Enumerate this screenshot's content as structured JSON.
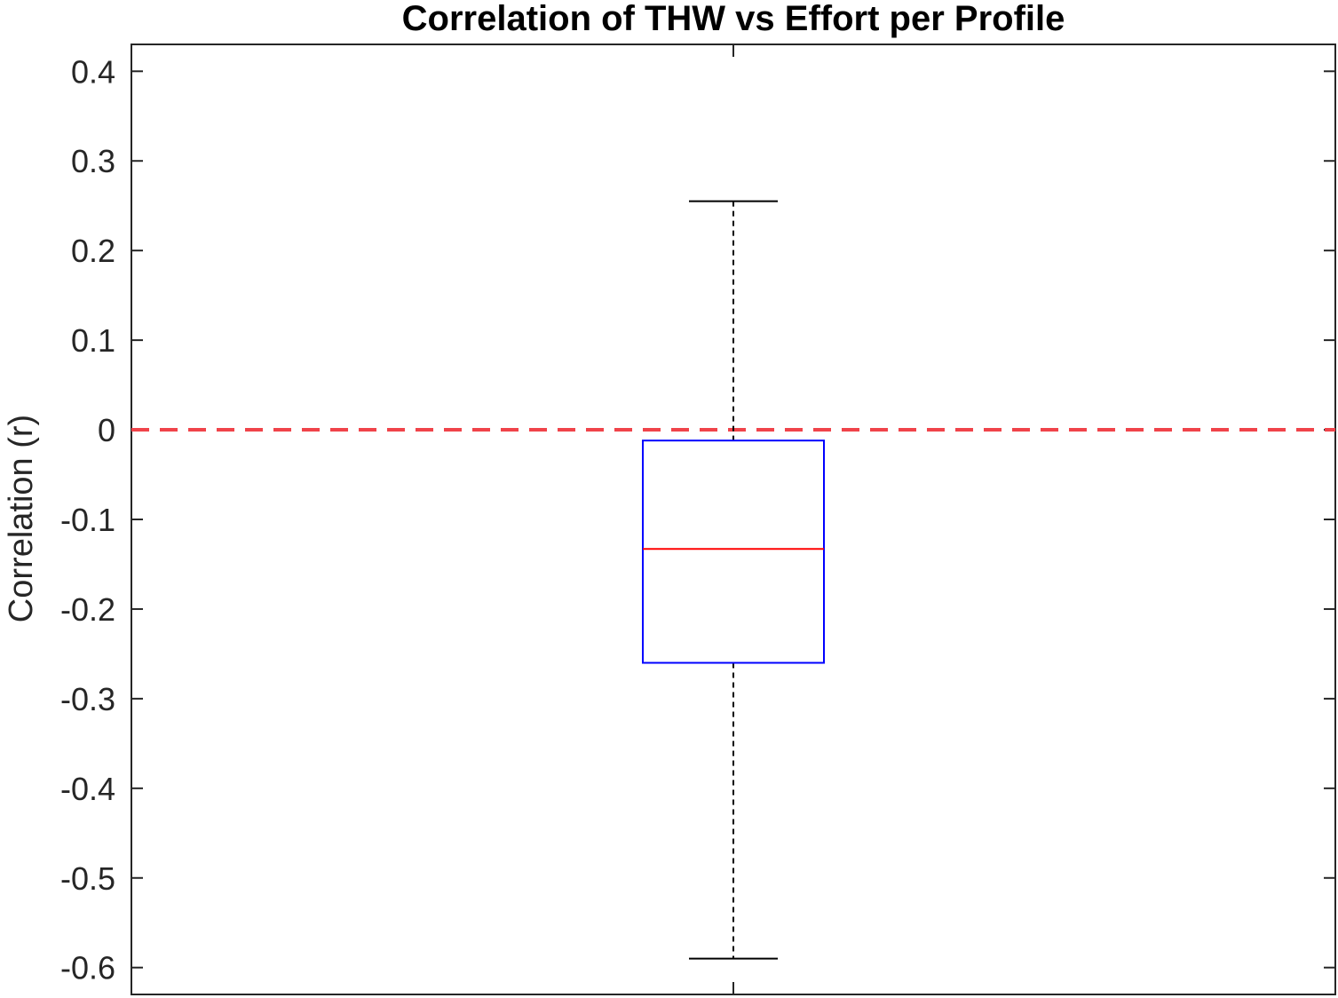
{
  "chart_data": {
    "type": "box",
    "title": "Correlation of THW vs Effort per Profile",
    "xlabel": "",
    "ylabel": "Correlation (r)",
    "ylim": [
      -0.63,
      0.43
    ],
    "yticks": [
      0.4,
      0.3,
      0.2,
      0.1,
      0,
      -0.1,
      -0.2,
      -0.3,
      -0.4,
      -0.5,
      -0.6
    ],
    "ytick_labels": [
      "0.4",
      "0.3",
      "0.2",
      "0.1",
      "0",
      "-0.1",
      "-0.2",
      "-0.3",
      "-0.4",
      "-0.5",
      "-0.6"
    ],
    "grid": false,
    "boxes": [
      {
        "whisker_low": -0.59,
        "q1": -0.26,
        "median": -0.133,
        "q3": -0.012,
        "whisker_high": 0.255
      }
    ],
    "reference_line": {
      "y": 0,
      "style": "dashed",
      "color": "#f0434a"
    },
    "colors": {
      "box": "#0000ff",
      "median": "#ff0000",
      "whisker": "#000000",
      "axes": "#262626"
    }
  }
}
